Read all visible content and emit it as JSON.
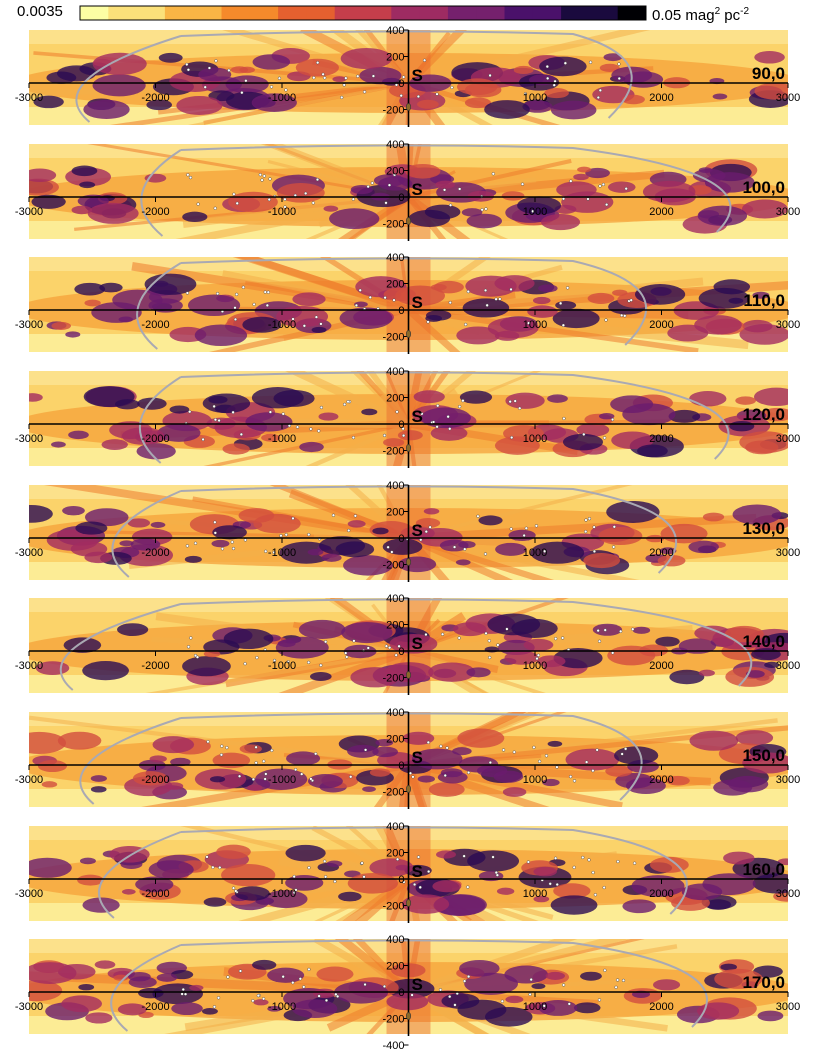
{
  "colorbar": {
    "min_label": "0.0035",
    "max_value": "0.05",
    "max_unit_mag": "mag",
    "max_unit_pc": "pc",
    "exp_mag": "2",
    "exp_pc": "-2",
    "colors": [
      "#fcfea4",
      "#fbe17a",
      "#f9b545",
      "#f58a2b",
      "#e5602f",
      "#c53e4b",
      "#9e2b62",
      "#75206d",
      "#4a116a",
      "#1a0a3e",
      "#000004"
    ]
  },
  "chart_data": {
    "type": "heatmap",
    "x_ticks": [
      -3000,
      -2000,
      -1000,
      1000,
      2000,
      3000
    ],
    "x_tick_labels": [
      "-3000",
      "-2000",
      "-1000",
      "1000",
      "2000",
      "3000"
    ],
    "y_ticks": [
      400,
      200,
      0,
      -200
    ],
    "y_tick_labels": [
      "400",
      "200",
      "0",
      "-200"
    ],
    "last_panel_extra_y_tick": "-400",
    "xlim": [
      -3000,
      3000
    ],
    "ylim": [
      -400,
      400
    ],
    "sun_label": "S",
    "panels": [
      {
        "label": "90,0"
      },
      {
        "label": "100,0"
      },
      {
        "label": "110,0"
      },
      {
        "label": "120,0"
      },
      {
        "label": "130,0"
      },
      {
        "label": "140,0"
      },
      {
        "label": "150,0"
      },
      {
        "label": "160,0"
      },
      {
        "label": "170,0"
      }
    ]
  }
}
